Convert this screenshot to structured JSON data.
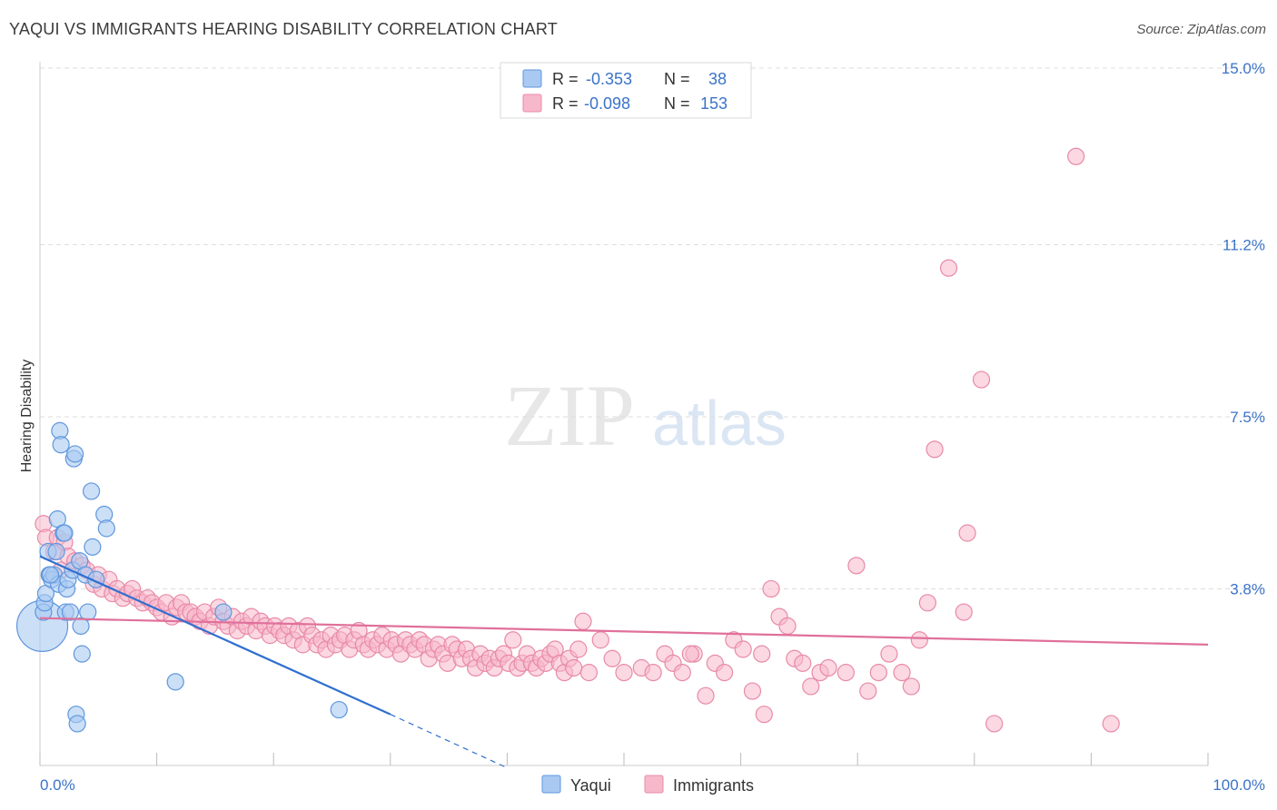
{
  "title": "YAQUI VS IMMIGRANTS HEARING DISABILITY CORRELATION CHART",
  "source": "Source: ZipAtlas.com",
  "watermark": {
    "zip": "ZIP",
    "atlas": "atlas"
  },
  "colors": {
    "yaqui_fill": "#a9c9f2",
    "yaqui_stroke": "#5f97dd",
    "yaqui_line": "#2f6fd0",
    "immigrants_fill": "#f7b8cb",
    "immigrants_stroke": "#e88aa8",
    "immigrants_line": "#e0709a",
    "tick_label": "#3b73c8",
    "grid": "#dddddd"
  },
  "legend": {
    "rows": [
      {
        "r_label": "R =",
        "r_value": "-0.353",
        "n_label": "N =",
        "n_value": "38"
      },
      {
        "r_label": "R =",
        "r_value": "-0.098",
        "n_label": "N =",
        "n_value": "153"
      }
    ]
  },
  "bottom_legend": {
    "yaqui": "Yaqui",
    "immigrants": "Immigrants"
  },
  "chart_data": {
    "type": "scatter",
    "title": "YAQUI VS IMMIGRANTS HEARING DISABILITY CORRELATION CHART",
    "xlabel": "",
    "ylabel": "Hearing Disability",
    "xlim": [
      0,
      100
    ],
    "ylim": [
      0,
      15.5
    ],
    "x_tick_labels": [
      "0.0%",
      "100.0%"
    ],
    "y_ticks": [
      3.8,
      7.5,
      11.2,
      15.0
    ],
    "y_tick_labels": [
      "3.8%",
      "7.5%",
      "11.2%",
      "15.0%"
    ],
    "grid": true,
    "series": [
      {
        "name": "Yaqui",
        "r": -0.353,
        "n": 38,
        "trend": {
          "x0": 0,
          "y0": 4.5,
          "x1": 30,
          "y1": 1.1,
          "dash_to_x": 40,
          "dash_to_y": -0.05
        },
        "points": [
          [
            0.2,
            3.0,
            28
          ],
          [
            0.3,
            3.3,
            9
          ],
          [
            0.4,
            3.5,
            9
          ],
          [
            0.5,
            3.7,
            9
          ],
          [
            0.7,
            4.6,
            9
          ],
          [
            0.8,
            4.1,
            9
          ],
          [
            1.0,
            4.0,
            9
          ],
          [
            1.2,
            4.1,
            9
          ],
          [
            1.4,
            4.6,
            9
          ],
          [
            1.5,
            5.3,
            9
          ],
          [
            1.6,
            3.9,
            9
          ],
          [
            1.7,
            7.2,
            9
          ],
          [
            1.8,
            6.9,
            9
          ],
          [
            2.0,
            5.0,
            9
          ],
          [
            2.1,
            5.0,
            9
          ],
          [
            2.2,
            3.3,
            9
          ],
          [
            2.3,
            3.8,
            9
          ],
          [
            2.4,
            4.0,
            9
          ],
          [
            2.6,
            3.3,
            9
          ],
          [
            2.8,
            4.2,
            9
          ],
          [
            2.9,
            6.6,
            9
          ],
          [
            3.0,
            6.7,
            9
          ],
          [
            3.1,
            1.1,
            9
          ],
          [
            3.2,
            0.9,
            9
          ],
          [
            3.4,
            4.4,
            9
          ],
          [
            3.5,
            3.0,
            9
          ],
          [
            3.6,
            2.4,
            9
          ],
          [
            3.9,
            4.1,
            9
          ],
          [
            4.1,
            3.3,
            9
          ],
          [
            4.4,
            5.9,
            9
          ],
          [
            4.5,
            4.7,
            9
          ],
          [
            4.8,
            4.0,
            9
          ],
          [
            5.5,
            5.4,
            9
          ],
          [
            5.7,
            5.1,
            9
          ],
          [
            11.6,
            1.8,
            9
          ],
          [
            15.7,
            3.3,
            9
          ],
          [
            25.6,
            1.2,
            9
          ],
          [
            0.9,
            4.1,
            9
          ]
        ]
      },
      {
        "name": "Immigrants",
        "r": -0.098,
        "n": 153,
        "trend": {
          "x0": 0,
          "y0": 3.17,
          "x1": 100,
          "y1": 2.6
        },
        "points": [
          [
            0.3,
            5.2
          ],
          [
            0.5,
            4.9
          ],
          [
            1.2,
            4.6
          ],
          [
            1.5,
            4.9
          ],
          [
            1.8,
            4.2
          ],
          [
            2.1,
            4.8
          ],
          [
            2.4,
            4.5
          ],
          [
            3.0,
            4.4
          ],
          [
            3.6,
            4.3
          ],
          [
            4.0,
            4.2
          ],
          [
            4.6,
            3.9
          ],
          [
            5.0,
            4.1
          ],
          [
            5.3,
            3.8
          ],
          [
            5.9,
            4.0
          ],
          [
            6.2,
            3.7
          ],
          [
            6.6,
            3.8
          ],
          [
            7.1,
            3.6
          ],
          [
            7.5,
            3.7
          ],
          [
            7.9,
            3.8
          ],
          [
            8.3,
            3.6
          ],
          [
            8.8,
            3.5
          ],
          [
            9.2,
            3.6
          ],
          [
            9.6,
            3.5
          ],
          [
            10.0,
            3.4
          ],
          [
            10.4,
            3.3
          ],
          [
            10.8,
            3.5
          ],
          [
            11.3,
            3.2
          ],
          [
            11.7,
            3.4
          ],
          [
            12.1,
            3.5
          ],
          [
            12.5,
            3.3
          ],
          [
            12.9,
            3.3
          ],
          [
            13.3,
            3.2
          ],
          [
            13.7,
            3.1
          ],
          [
            14.1,
            3.3
          ],
          [
            14.5,
            3.0
          ],
          [
            14.9,
            3.2
          ],
          [
            15.3,
            3.4
          ],
          [
            15.7,
            3.1
          ],
          [
            16.1,
            3.0
          ],
          [
            16.5,
            3.2
          ],
          [
            16.9,
            2.9
          ],
          [
            17.3,
            3.1
          ],
          [
            17.7,
            3.0
          ],
          [
            18.1,
            3.2
          ],
          [
            18.5,
            2.9
          ],
          [
            18.9,
            3.1
          ],
          [
            19.3,
            3.0
          ],
          [
            19.7,
            2.8
          ],
          [
            20.1,
            3.0
          ],
          [
            20.5,
            2.9
          ],
          [
            20.9,
            2.8
          ],
          [
            21.3,
            3.0
          ],
          [
            21.7,
            2.7
          ],
          [
            22.1,
            2.9
          ],
          [
            22.5,
            2.6
          ],
          [
            22.9,
            3.0
          ],
          [
            23.3,
            2.8
          ],
          [
            23.7,
            2.6
          ],
          [
            24.1,
            2.7
          ],
          [
            24.5,
            2.5
          ],
          [
            24.9,
            2.8
          ],
          [
            25.3,
            2.6
          ],
          [
            25.7,
            2.7
          ],
          [
            26.1,
            2.8
          ],
          [
            26.5,
            2.5
          ],
          [
            26.9,
            2.7
          ],
          [
            27.3,
            2.9
          ],
          [
            27.7,
            2.6
          ],
          [
            28.1,
            2.5
          ],
          [
            28.5,
            2.7
          ],
          [
            28.9,
            2.6
          ],
          [
            29.3,
            2.8
          ],
          [
            29.7,
            2.5
          ],
          [
            30.1,
            2.7
          ],
          [
            30.5,
            2.6
          ],
          [
            30.9,
            2.4
          ],
          [
            31.3,
            2.7
          ],
          [
            31.7,
            2.6
          ],
          [
            32.1,
            2.5
          ],
          [
            32.5,
            2.7
          ],
          [
            32.9,
            2.6
          ],
          [
            33.3,
            2.3
          ],
          [
            33.7,
            2.5
          ],
          [
            34.1,
            2.6
          ],
          [
            34.5,
            2.4
          ],
          [
            34.9,
            2.2
          ],
          [
            35.3,
            2.6
          ],
          [
            35.7,
            2.5
          ],
          [
            36.1,
            2.3
          ],
          [
            36.5,
            2.5
          ],
          [
            36.9,
            2.3
          ],
          [
            37.3,
            2.1
          ],
          [
            37.7,
            2.4
          ],
          [
            38.1,
            2.2
          ],
          [
            38.5,
            2.3
          ],
          [
            38.9,
            2.1
          ],
          [
            39.3,
            2.3
          ],
          [
            39.7,
            2.4
          ],
          [
            40.1,
            2.2
          ],
          [
            40.5,
            2.7
          ],
          [
            40.9,
            2.1
          ],
          [
            41.3,
            2.2
          ],
          [
            41.7,
            2.4
          ],
          [
            42.1,
            2.2
          ],
          [
            42.5,
            2.1
          ],
          [
            42.9,
            2.3
          ],
          [
            43.3,
            2.2
          ],
          [
            43.7,
            2.4
          ],
          [
            44.1,
            2.5
          ],
          [
            44.5,
            2.2
          ],
          [
            44.9,
            2.0
          ],
          [
            45.3,
            2.3
          ],
          [
            45.7,
            2.1
          ],
          [
            46.1,
            2.5
          ],
          [
            46.5,
            3.1
          ],
          [
            47.0,
            2.0
          ],
          [
            48.0,
            2.7
          ],
          [
            49.0,
            2.3
          ],
          [
            50.0,
            2.0
          ],
          [
            51.5,
            2.1
          ],
          [
            52.5,
            2.0
          ],
          [
            53.5,
            2.4
          ],
          [
            54.2,
            2.2
          ],
          [
            55.0,
            2.0
          ],
          [
            56.0,
            2.4
          ],
          [
            57.0,
            1.5
          ],
          [
            57.8,
            2.2
          ],
          [
            58.6,
            2.0
          ],
          [
            59.4,
            2.7
          ],
          [
            60.2,
            2.5
          ],
          [
            61.0,
            1.6
          ],
          [
            61.8,
            2.4
          ],
          [
            62.6,
            3.8
          ],
          [
            63.3,
            3.2
          ],
          [
            64.0,
            3.0
          ],
          [
            64.6,
            2.3
          ],
          [
            65.3,
            2.2
          ],
          [
            66.0,
            1.7
          ],
          [
            66.8,
            2.0
          ],
          [
            67.5,
            2.1
          ],
          [
            69.0,
            2.0
          ],
          [
            69.9,
            4.3
          ],
          [
            70.9,
            1.6
          ],
          [
            71.8,
            2.0
          ],
          [
            72.7,
            2.4
          ],
          [
            73.8,
            2.0
          ],
          [
            74.6,
            1.7
          ],
          [
            75.3,
            2.7
          ],
          [
            76.0,
            3.5
          ],
          [
            76.6,
            6.8
          ],
          [
            77.8,
            10.7
          ],
          [
            79.1,
            3.3
          ],
          [
            79.4,
            5.0
          ],
          [
            80.6,
            8.3
          ],
          [
            81.7,
            0.9
          ],
          [
            88.7,
            13.1
          ],
          [
            91.7,
            0.9
          ],
          [
            55.7,
            2.4
          ],
          [
            62.0,
            1.1
          ]
        ]
      }
    ]
  }
}
